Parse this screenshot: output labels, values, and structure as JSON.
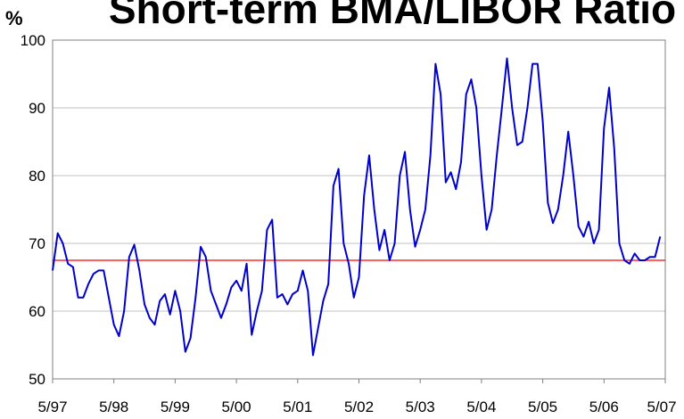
{
  "chart_data": {
    "type": "line",
    "title": "Short-term BMA/LIBOR Ratio",
    "ylabel": "%",
    "xlabel": "",
    "ylim": [
      50,
      100
    ],
    "yticks": [
      50,
      60,
      70,
      80,
      90,
      100
    ],
    "xlim": [
      "1997-05",
      "2007-05"
    ],
    "xticks": [
      "5/97",
      "5/98",
      "5/99",
      "5/00",
      "5/01",
      "5/02",
      "5/03",
      "5/04",
      "5/05",
      "5/06",
      "5/07"
    ],
    "grid": "horizontal",
    "legend": "none",
    "series": [
      {
        "name": "",
        "color": "#0000cc",
        "points": [
          [
            "1997-05",
            66
          ],
          [
            "1997-06",
            71.5
          ],
          [
            "1997-07",
            70
          ],
          [
            "1997-08",
            67
          ],
          [
            "1997-09",
            66.5
          ],
          [
            "1997-10",
            62
          ],
          [
            "1997-11",
            62
          ],
          [
            "1997-12",
            64
          ],
          [
            "1998-01",
            65.5
          ],
          [
            "1998-02",
            66
          ],
          [
            "1998-03",
            66
          ],
          [
            "1998-04",
            62
          ],
          [
            "1998-05",
            58
          ],
          [
            "1998-06",
            56.3
          ],
          [
            "1998-07",
            60
          ],
          [
            "1998-08",
            68
          ],
          [
            "1998-09",
            69.8
          ],
          [
            "1998-10",
            66
          ],
          [
            "1998-11",
            61
          ],
          [
            "1998-12",
            59
          ],
          [
            "1999-01",
            58
          ],
          [
            "1999-02",
            61.5
          ],
          [
            "1999-03",
            62.5
          ],
          [
            "1999-04",
            59.5
          ],
          [
            "1999-05",
            63
          ],
          [
            "1999-06",
            60
          ],
          [
            "1999-07",
            54
          ],
          [
            "1999-08",
            56
          ],
          [
            "1999-09",
            62
          ],
          [
            "1999-10",
            69.5
          ],
          [
            "1999-11",
            68
          ],
          [
            "1999-12",
            63
          ],
          [
            "2000-01",
            61
          ],
          [
            "2000-02",
            59
          ],
          [
            "2000-03",
            61
          ],
          [
            "2000-04",
            63.5
          ],
          [
            "2000-05",
            64.5
          ],
          [
            "2000-06",
            63
          ],
          [
            "2000-07",
            67
          ],
          [
            "2000-08",
            56.5
          ],
          [
            "2000-09",
            60
          ],
          [
            "2000-10",
            63
          ],
          [
            "2000-11",
            72
          ],
          [
            "2000-12",
            73.5
          ],
          [
            "2001-01",
            62
          ],
          [
            "2001-02",
            62.5
          ],
          [
            "2001-03",
            61
          ],
          [
            "2001-04",
            62.5
          ],
          [
            "2001-05",
            63
          ],
          [
            "2001-06",
            66
          ],
          [
            "2001-07",
            63
          ],
          [
            "2001-08",
            53.5
          ],
          [
            "2001-09",
            57.5
          ],
          [
            "2001-10",
            61.5
          ],
          [
            "2001-11",
            64
          ],
          [
            "2001-12",
            78.5
          ],
          [
            "2002-01",
            81
          ],
          [
            "2002-02",
            70
          ],
          [
            "2002-03",
            67
          ],
          [
            "2002-04",
            62
          ],
          [
            "2002-05",
            65
          ],
          [
            "2002-06",
            77
          ],
          [
            "2002-07",
            83
          ],
          [
            "2002-08",
            75
          ],
          [
            "2002-09",
            69
          ],
          [
            "2002-10",
            72
          ],
          [
            "2002-11",
            67.5
          ],
          [
            "2002-12",
            70
          ],
          [
            "2003-01",
            80
          ],
          [
            "2003-02",
            83.5
          ],
          [
            "2003-03",
            75
          ],
          [
            "2003-04",
            69.5
          ],
          [
            "2003-05",
            72
          ],
          [
            "2003-06",
            75
          ],
          [
            "2003-07",
            83
          ],
          [
            "2003-08",
            96.5
          ],
          [
            "2003-09",
            92
          ],
          [
            "2003-10",
            79
          ],
          [
            "2003-11",
            80.5
          ],
          [
            "2003-12",
            78
          ],
          [
            "2004-01",
            82
          ],
          [
            "2004-02",
            92
          ],
          [
            "2004-03",
            94.2
          ],
          [
            "2004-04",
            90
          ],
          [
            "2004-05",
            80
          ],
          [
            "2004-06",
            72
          ],
          [
            "2004-07",
            75
          ],
          [
            "2004-08",
            83
          ],
          [
            "2004-09",
            90
          ],
          [
            "2004-10",
            97.3
          ],
          [
            "2004-11",
            90
          ],
          [
            "2004-12",
            84.5
          ],
          [
            "2005-01",
            85
          ],
          [
            "2005-02",
            90
          ],
          [
            "2005-03",
            96.5
          ],
          [
            "2005-04",
            96.5
          ],
          [
            "2005-05",
            88
          ],
          [
            "2005-06",
            76
          ],
          [
            "2005-07",
            73
          ],
          [
            "2005-08",
            75
          ],
          [
            "2005-09",
            80
          ],
          [
            "2005-10",
            86.5
          ],
          [
            "2005-11",
            80
          ],
          [
            "2005-12",
            72.5
          ],
          [
            "2006-01",
            71
          ],
          [
            "2006-02",
            73.2
          ],
          [
            "2006-03",
            70
          ],
          [
            "2006-04",
            72
          ],
          [
            "2006-05",
            87
          ],
          [
            "2006-06",
            93
          ],
          [
            "2006-07",
            84
          ],
          [
            "2006-08",
            70
          ],
          [
            "2006-09",
            67.5
          ],
          [
            "2006-10",
            67
          ],
          [
            "2006-11",
            68.5
          ],
          [
            "2006-12",
            67.5
          ],
          [
            "2007-01",
            67.5
          ],
          [
            "2007-02",
            68
          ],
          [
            "2007-03",
            68
          ],
          [
            "2007-04",
            71
          ]
        ]
      }
    ],
    "reference_line": {
      "y": 67.5,
      "color": "#ff0000"
    }
  }
}
